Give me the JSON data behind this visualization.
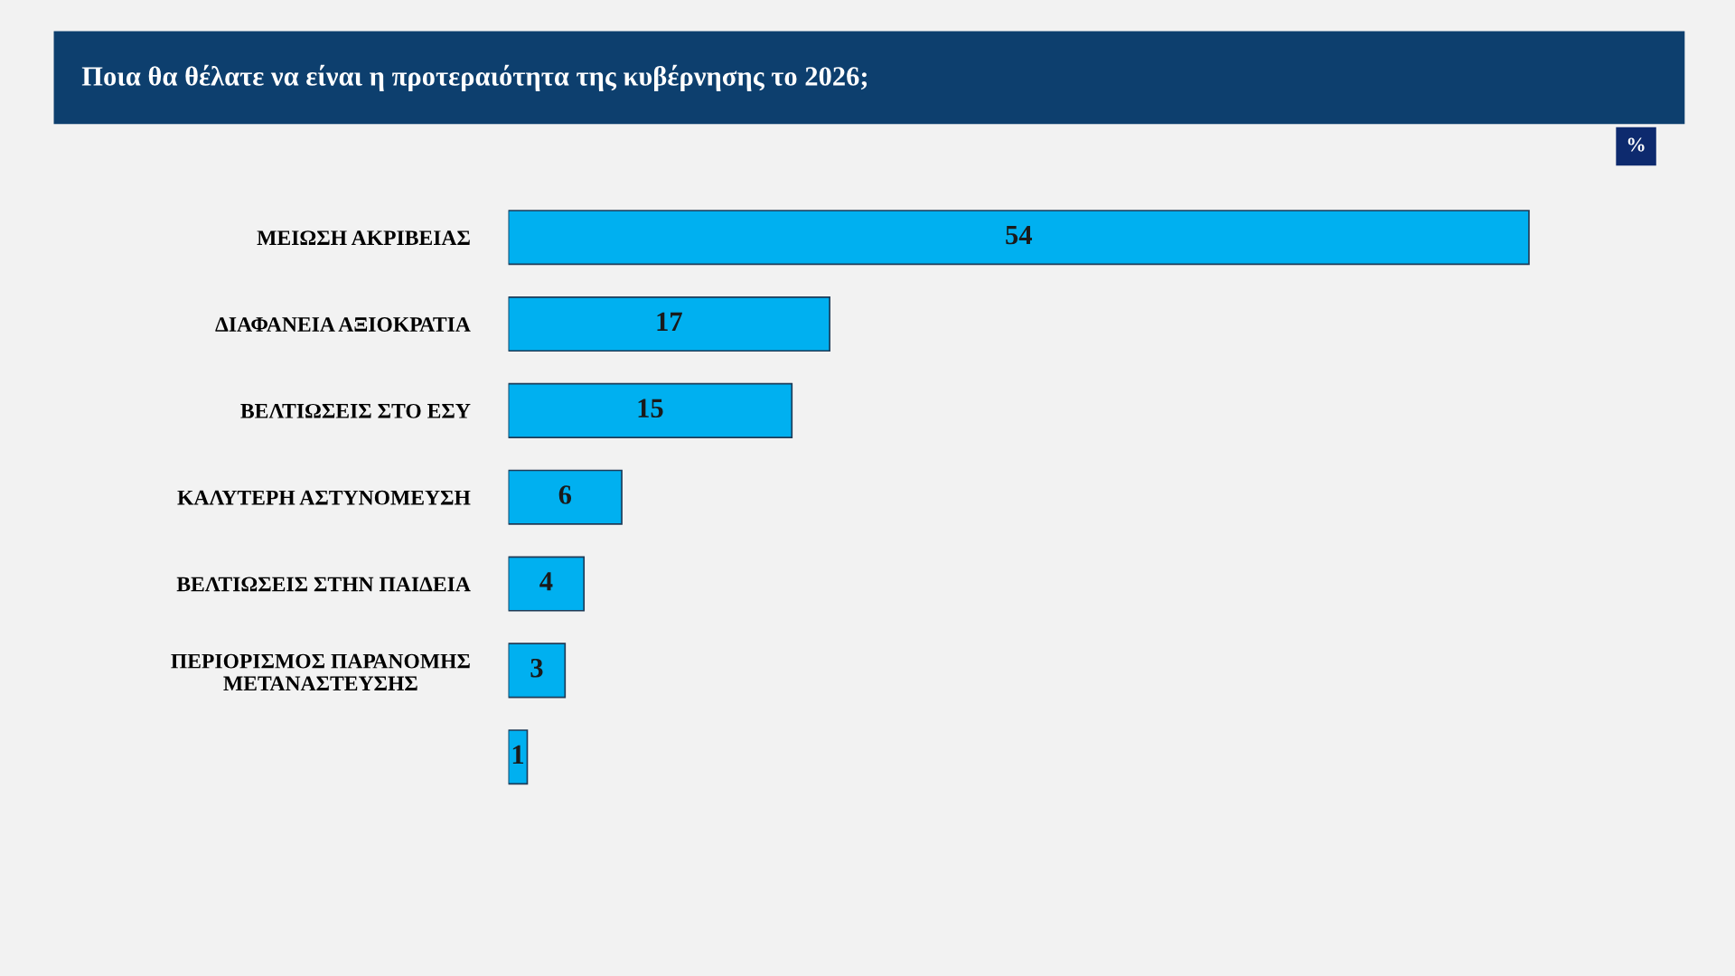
{
  "chart_data": {
    "type": "bar",
    "orientation": "horizontal",
    "title": "Ποια θα θέλατε να είναι η προτεραιότητα της κυβέρνησης το 2026;",
    "categories": [
      "ΜΕΙΩΣΗ ΑΚΡΙΒΕΙΑΣ",
      "ΔΙΑΦΑΝΕΙΑ ΑΞΙΟΚΡΑΤΙΑ",
      "ΒΕΛΤΙΩΣΕΙΣ ΣΤΟ ΕΣΥ",
      "ΚΑΛΥΤΕΡΗ ΑΣΤΥΝΟΜΕΥΣΗ",
      "ΒΕΛΤΙΩΣΕΙΣ ΣΤΗΝ ΠΑΙΔΕΙΑ",
      "ΠΕΡΙΟΡΙΣΜΟΣ ΠΑΡΑΝΟΜΗΣ\nΜΕΤΑΝΑΣΤΕΥΣΗΣ",
      null
    ],
    "values": [
      54,
      17,
      15,
      6,
      4,
      3,
      1
    ],
    "color": "#00b0f0",
    "data_labels": true,
    "annotations": [
      "%"
    ],
    "grid": false,
    "legend": false
  }
}
